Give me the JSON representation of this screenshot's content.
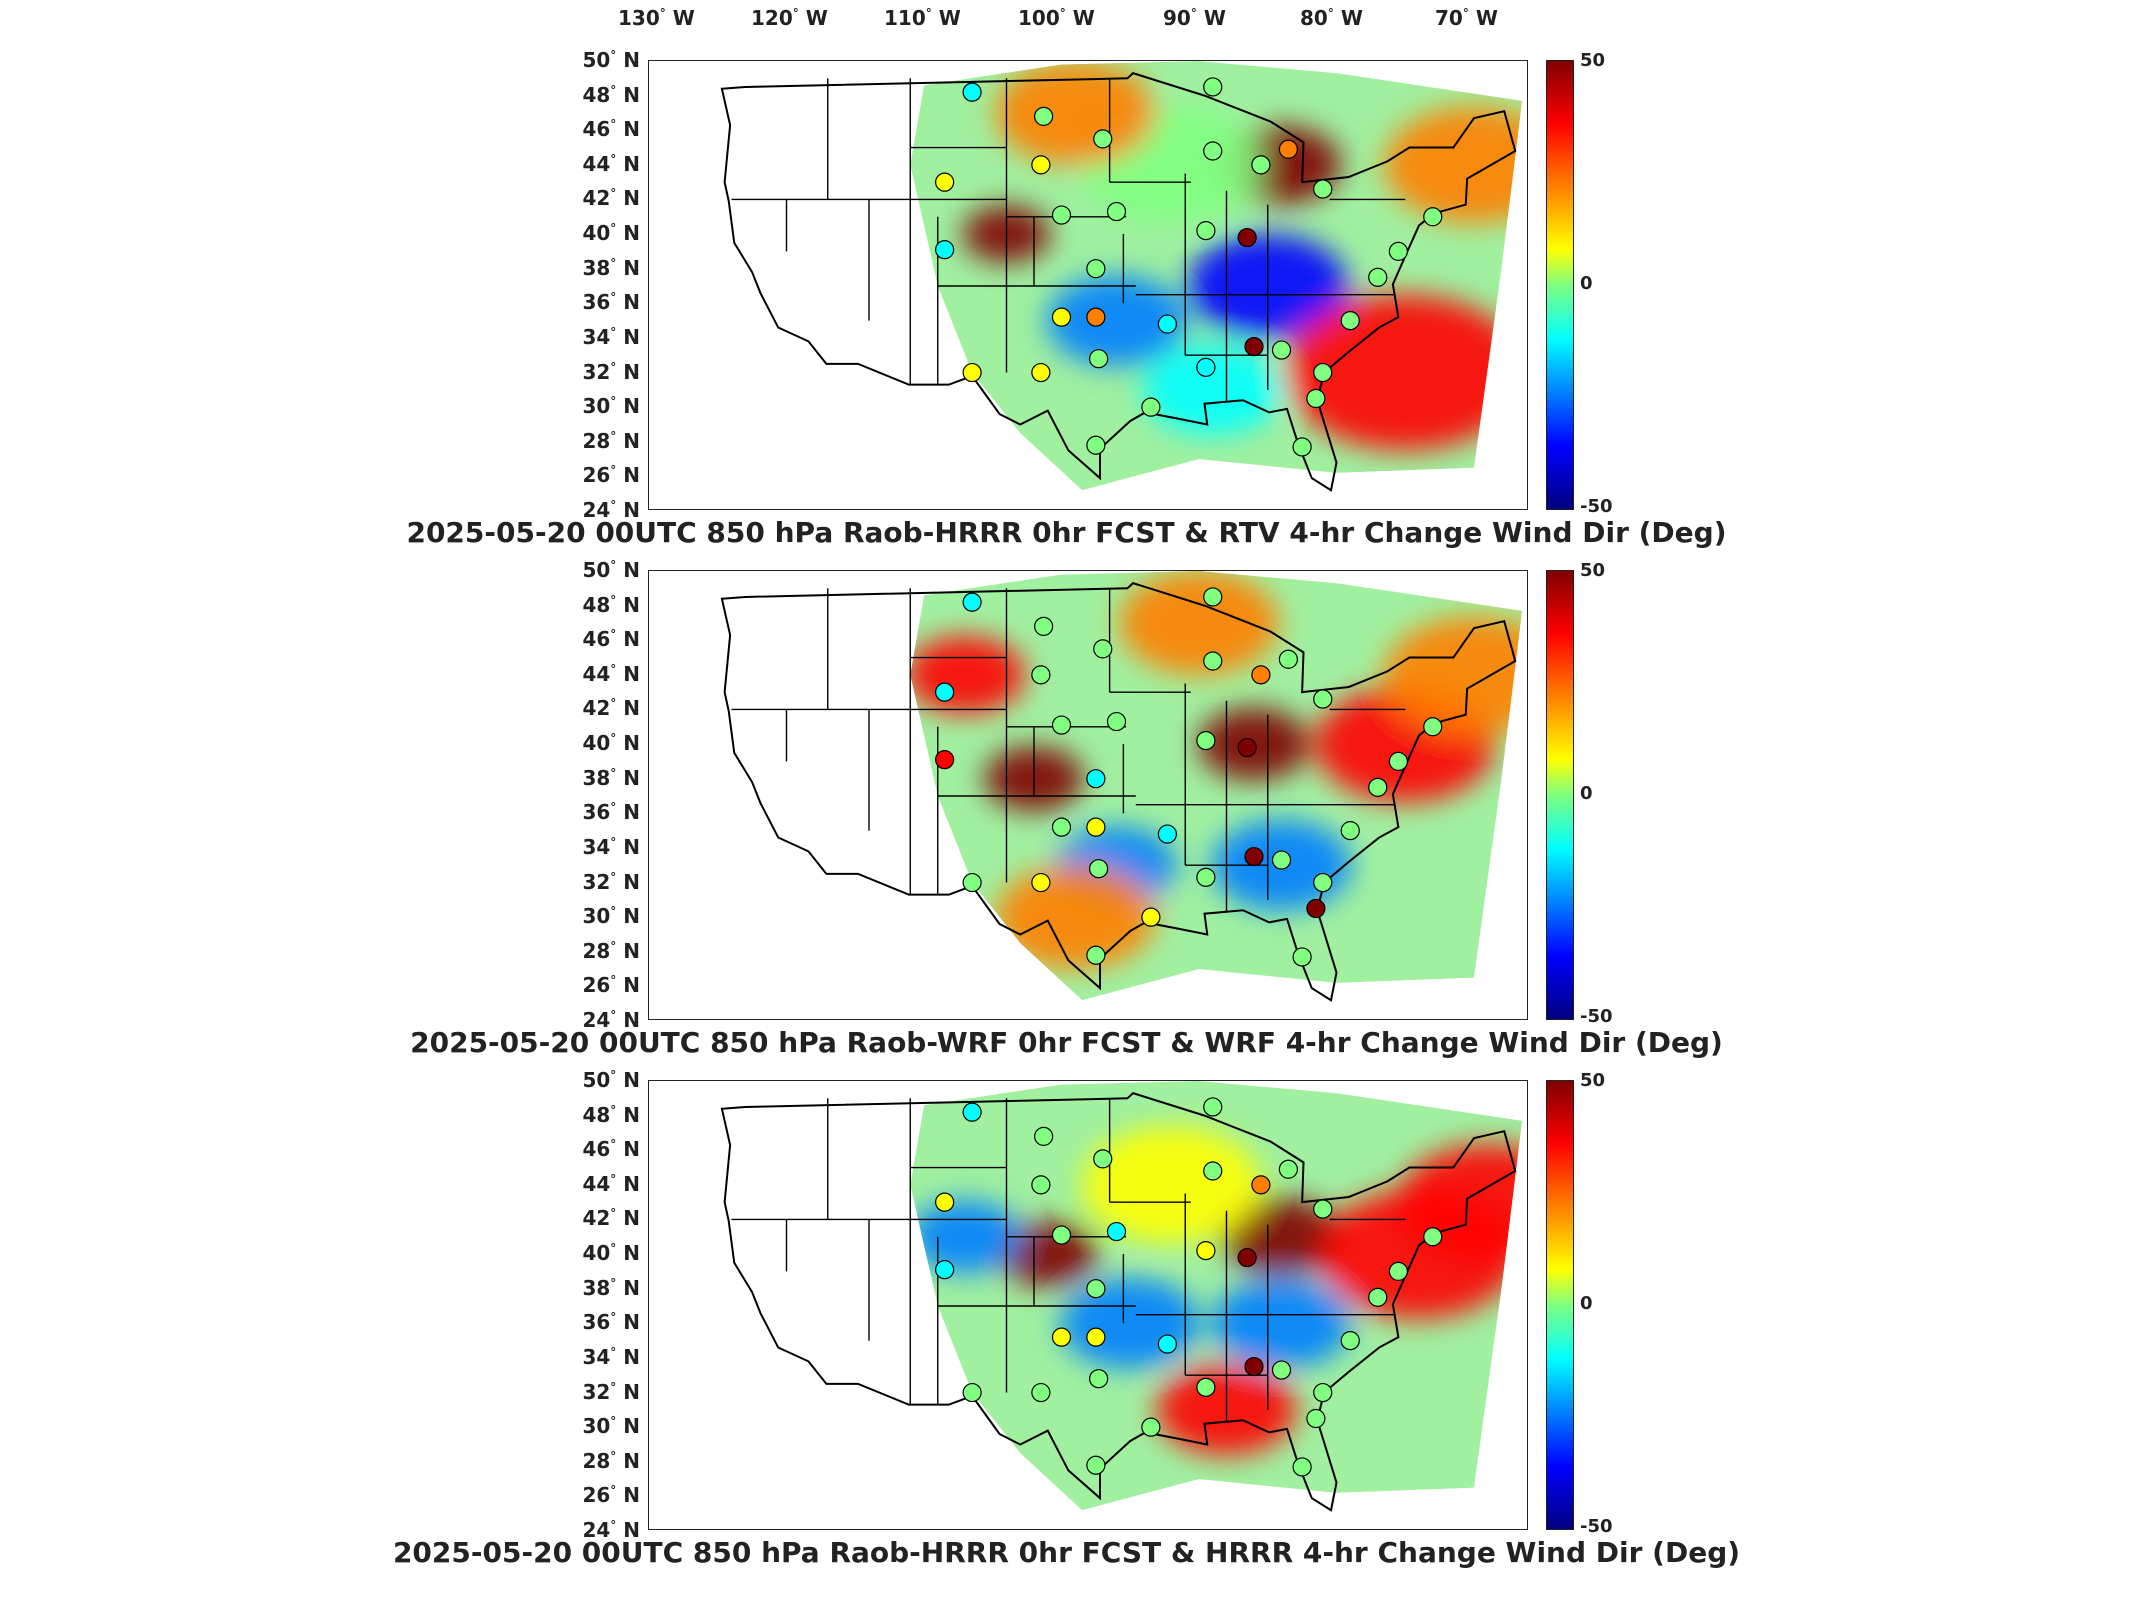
{
  "longitude_labels": [
    {
      "deg": "130",
      "hem": "W"
    },
    {
      "deg": "120",
      "hem": "W"
    },
    {
      "deg": "110",
      "hem": "W"
    },
    {
      "deg": "100",
      "hem": "W"
    },
    {
      "deg": "90",
      "hem": "W"
    },
    {
      "deg": "80",
      "hem": "W"
    },
    {
      "deg": "70",
      "hem": "W"
    }
  ],
  "latitude_labels": [
    {
      "deg": "50",
      "hem": "N"
    },
    {
      "deg": "48",
      "hem": "N"
    },
    {
      "deg": "46",
      "hem": "N"
    },
    {
      "deg": "44",
      "hem": "N"
    },
    {
      "deg": "42",
      "hem": "N"
    },
    {
      "deg": "40",
      "hem": "N"
    },
    {
      "deg": "38",
      "hem": "N"
    },
    {
      "deg": "36",
      "hem": "N"
    },
    {
      "deg": "34",
      "hem": "N"
    },
    {
      "deg": "32",
      "hem": "N"
    },
    {
      "deg": "30",
      "hem": "N"
    },
    {
      "deg": "28",
      "hem": "N"
    },
    {
      "deg": "26",
      "hem": "N"
    },
    {
      "deg": "24",
      "hem": "N"
    }
  ],
  "colorbar": {
    "max_label": "50",
    "mid_label": "0",
    "min_label": "-50"
  },
  "panels": [
    {
      "title": "2025-05-20 00UTC 850 hPa Raob-HRRR 0hr FCST & RTV 4-hr Change Wind Dir (Deg)"
    },
    {
      "title": "2025-05-20 00UTC 850 hPa Raob-WRF 0hr FCST & WRF 4-hr Change Wind Dir (Deg)"
    },
    {
      "title": "2025-05-20 00UTC 850 hPa Raob-HRRR 0hr FCST & HRRR 4-hr Change Wind Dir (Deg)"
    }
  ],
  "colors": {
    "max": "#800000",
    "high": "#ff0000",
    "mid_high": "#ffff00",
    "zero": "#80ff80",
    "mid_low": "#00ffff",
    "low": "#0000ff",
    "min": "#000080"
  },
  "raob_stations": [
    {
      "lon": -106.5,
      "lat": 48.2
    },
    {
      "lon": -101.3,
      "lat": 46.8
    },
    {
      "lon": -97.0,
      "lat": 45.5
    },
    {
      "lon": -89.0,
      "lat": 48.5
    },
    {
      "lon": -89.0,
      "lat": 44.8
    },
    {
      "lon": -85.5,
      "lat": 44.0
    },
    {
      "lon": -83.5,
      "lat": 44.9
    },
    {
      "lon": -81.0,
      "lat": 42.6
    },
    {
      "lon": -101.5,
      "lat": 44.0
    },
    {
      "lon": -108.5,
      "lat": 43.0
    },
    {
      "lon": -108.5,
      "lat": 39.1
    },
    {
      "lon": -100.0,
      "lat": 41.1
    },
    {
      "lon": -96.0,
      "lat": 41.3
    },
    {
      "lon": -89.5,
      "lat": 40.2
    },
    {
      "lon": -86.5,
      "lat": 39.8
    },
    {
      "lon": -97.5,
      "lat": 38.0
    },
    {
      "lon": -100.0,
      "lat": 35.2
    },
    {
      "lon": -97.5,
      "lat": 35.2
    },
    {
      "lon": -92.3,
      "lat": 34.8
    },
    {
      "lon": -89.5,
      "lat": 32.3
    },
    {
      "lon": -86.0,
      "lat": 33.5
    },
    {
      "lon": -84.0,
      "lat": 33.3
    },
    {
      "lon": -81.0,
      "lat": 32.0
    },
    {
      "lon": -79.0,
      "lat": 35.0
    },
    {
      "lon": -77.0,
      "lat": 37.5
    },
    {
      "lon": -75.5,
      "lat": 39.0
    },
    {
      "lon": -106.5,
      "lat": 32.0
    },
    {
      "lon": -101.5,
      "lat": 32.0
    },
    {
      "lon": -97.5,
      "lat": 27.8
    },
    {
      "lon": -93.5,
      "lat": 30.0
    },
    {
      "lon": -82.5,
      "lat": 27.7
    },
    {
      "lon": -81.5,
      "lat": 30.5
    },
    {
      "lon": -97.3,
      "lat": 32.8
    },
    {
      "lon": -73.0,
      "lat": 41.0
    }
  ]
}
